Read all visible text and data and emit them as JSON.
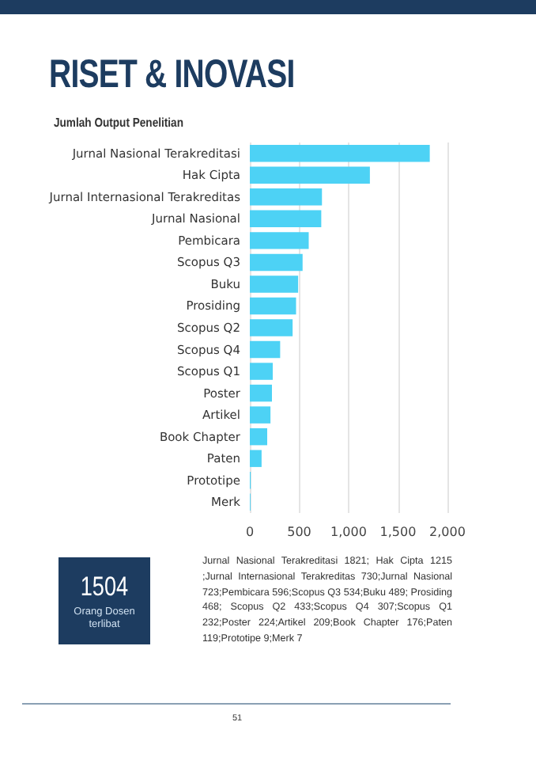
{
  "chart_data": {
    "type": "bar",
    "orientation": "horizontal",
    "title": "RISET & INOVASI",
    "subtitle": "Jumlah Output Penelitian",
    "categories": [
      "Jurnal Nasional Terakreditasi",
      "Hak Cipta",
      "Jurnal Internasional Terakreditas",
      "Jurnal Nasional",
      "Pembicara",
      "Scopus Q3",
      "Buku",
      "Prosiding",
      "Scopus Q2",
      "Scopus Q4",
      "Scopus Q1",
      "Poster",
      "Artikel",
      "Book Chapter",
      "Paten",
      "Prototipe",
      "Merk"
    ],
    "values": [
      1821,
      1215,
      730,
      723,
      596,
      534,
      489,
      468,
      433,
      307,
      232,
      224,
      209,
      176,
      119,
      9,
      7
    ],
    "color": "#4dd2f5",
    "xlim": [
      0,
      2000
    ],
    "xticks": [
      0,
      500,
      {
        "value": 1000,
        "label": "1,000"
      },
      {
        "value": 1500,
        "label": "1,500"
      },
      {
        "value": 2000,
        "label": "2,000"
      }
    ],
    "grid": "x",
    "annotations": [
      "1504",
      "Orang Dosen terlibat",
      "Jurnal Nasional Terakreditasi 1821; Hak Cipta 1215 ;Jurnal Internasional Terakreditas 730;Jurnal Nasional 723;Pembicara 596;Scopus Q3 534;Buku 489; Prosiding 468; Scopus Q2 433;Scopus Q4 307;Scopus Q1 232;Poster 224;Artikel 209;Book Chapter 176;Paten 119;Prototipe 9;Merk 7",
      "51"
    ]
  }
}
